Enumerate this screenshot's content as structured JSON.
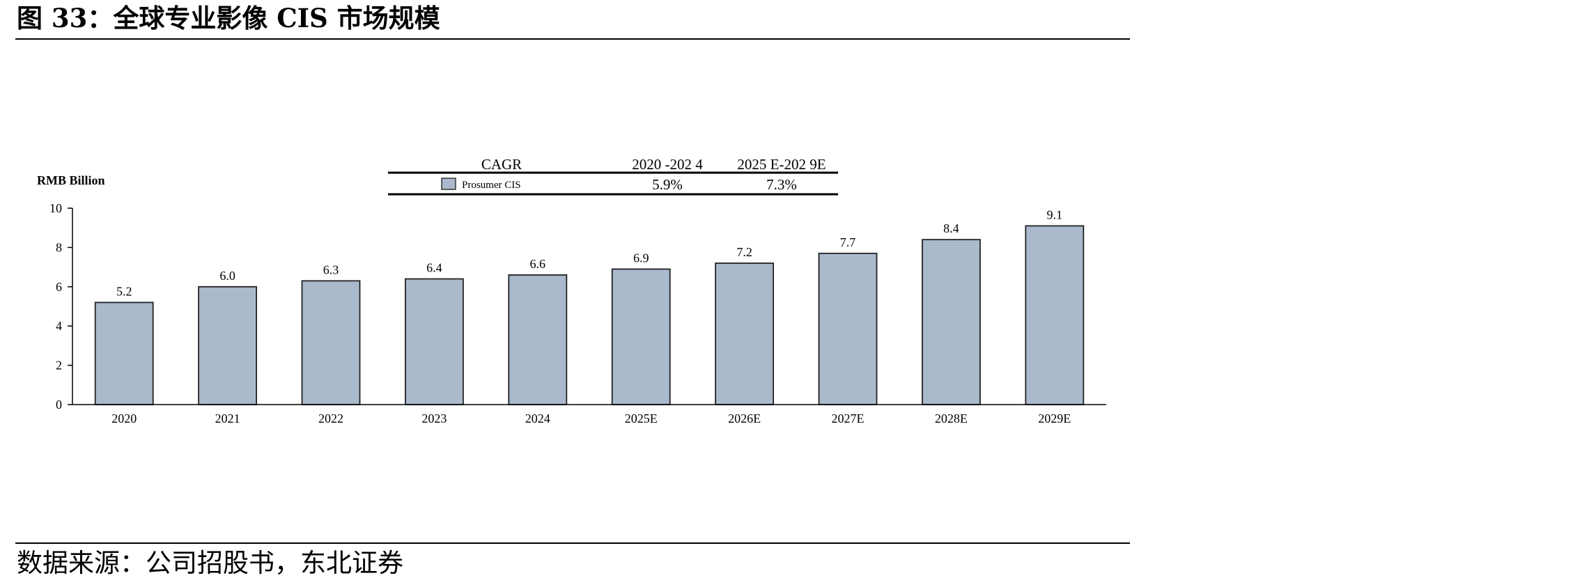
{
  "figure": {
    "title": "图 33：全球专业影像 CIS 市场规模",
    "source": "数据来源：公司招股书，东北证券"
  },
  "chart_data": {
    "type": "bar",
    "ylabel": "RMB Billion",
    "xlabel": "",
    "ylim": [
      0,
      10
    ],
    "yticks": [
      "0",
      "2",
      "4",
      "6",
      "8",
      "10"
    ],
    "categories": [
      "2020",
      "2021",
      "2022",
      "2023",
      "2024",
      "2025E",
      "2026E",
      "2027E",
      "2028E",
      "2029E"
    ],
    "series": [
      {
        "name": "Prosumer CIS",
        "values": [
          5.2,
          6.0,
          6.3,
          6.4,
          6.6,
          6.9,
          7.2,
          7.7,
          8.4,
          9.1
        ],
        "color": "#aab9cc"
      }
    ],
    "value_labels": [
      "5.2",
      "6.0",
      "6.3",
      "6.4",
      "6.6",
      "6.9",
      "7.2",
      "7.7",
      "8.4",
      "9.1"
    ],
    "grid": false,
    "legend_table": {
      "header": [
        "CAGR",
        "2020 -202 4",
        "2025 E-202 9E"
      ],
      "row": {
        "label": "Prosumer CIS",
        "values": [
          "5.9%",
          "7.3%"
        ]
      }
    }
  }
}
